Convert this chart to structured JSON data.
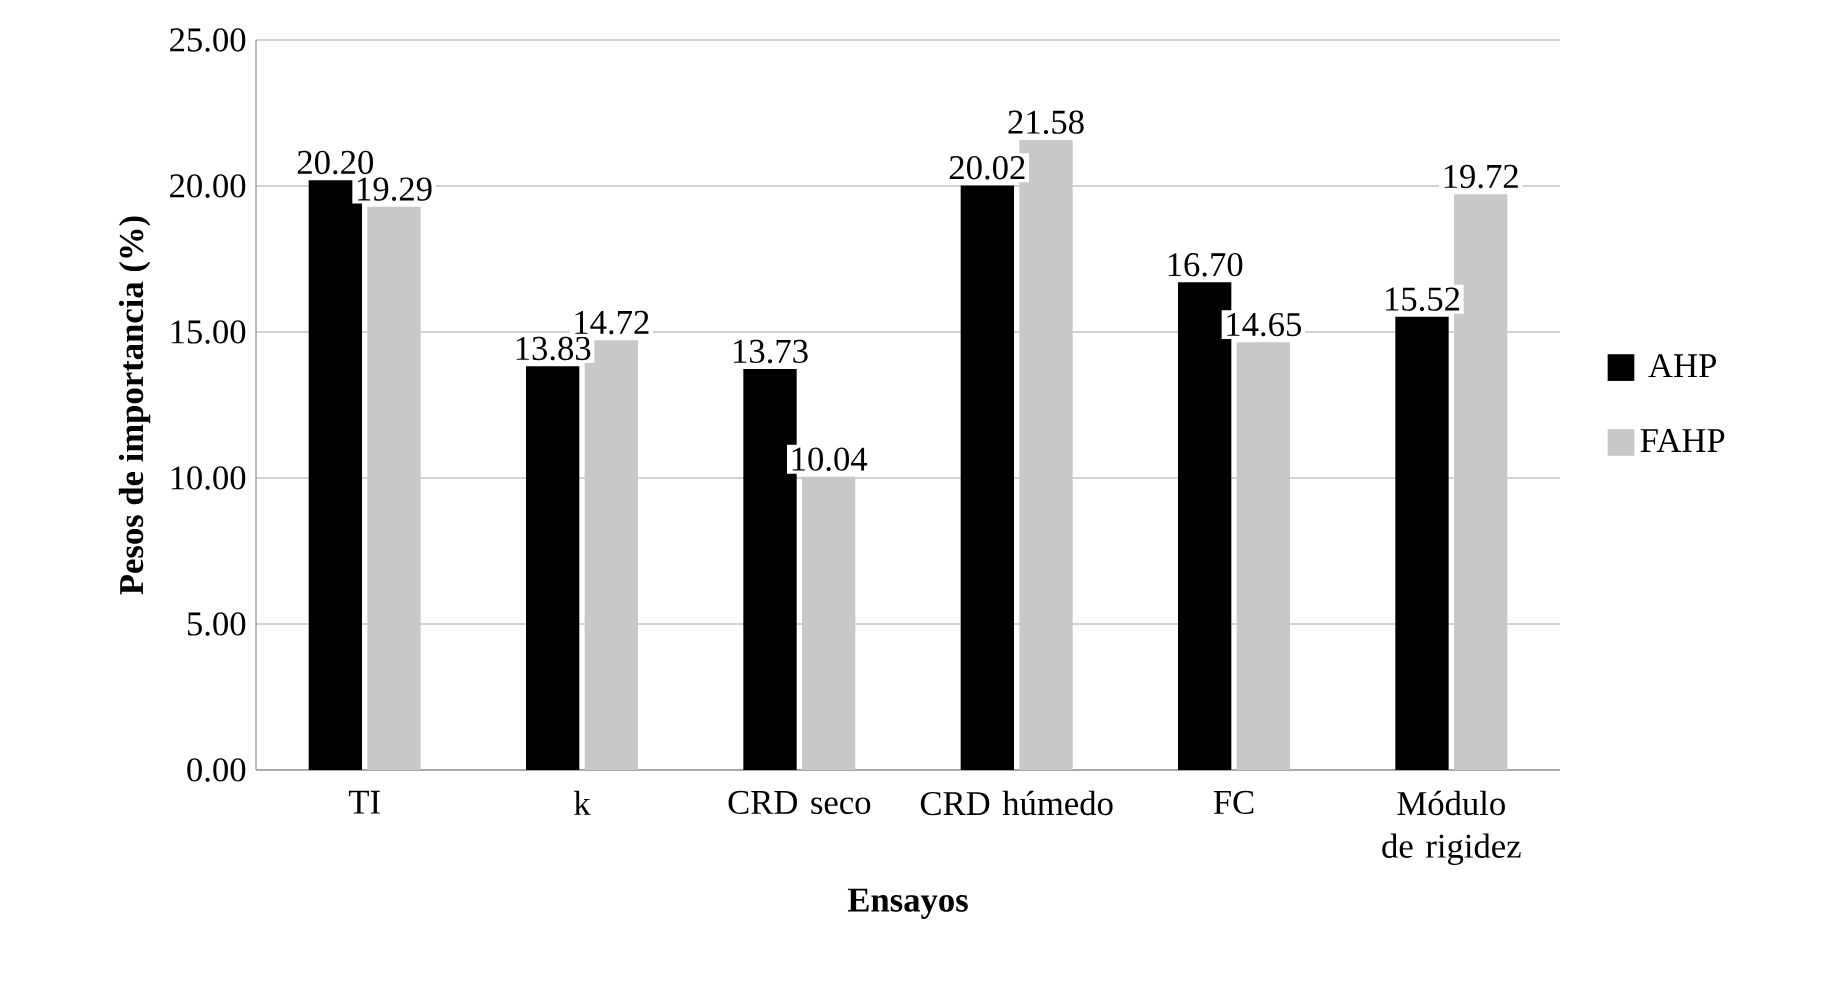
{
  "chart_data": {
    "type": "bar",
    "xlabel": "Ensayos",
    "ylabel": "Pesos de importancia (%)",
    "categories": [
      "TI",
      "k",
      "CRD seco",
      "CRD húmedo",
      "FC",
      "Módulo de rigidez"
    ],
    "series": [
      {
        "name": "AHP",
        "color": "#000000",
        "values": [
          20.2,
          13.83,
          13.73,
          20.02,
          16.7,
          15.52
        ],
        "value_labels": [
          "20.20",
          "13.83",
          "13.73",
          "20.02",
          "16.70",
          "15.52"
        ]
      },
      {
        "name": "FAHP",
        "color": "#c8c8c8",
        "values": [
          19.29,
          14.72,
          10.04,
          21.58,
          14.65,
          19.72
        ],
        "value_labels": [
          "19.29",
          "14.72",
          "10.04",
          "21.58",
          "14.65",
          "19.72"
        ]
      }
    ],
    "ylim": [
      0,
      25
    ],
    "yticks": [
      {
        "value": 0,
        "label": "0.00"
      },
      {
        "value": 5,
        "label": "5.00"
      },
      {
        "value": 10,
        "label": "10.00"
      },
      {
        "value": 15,
        "label": "15.00"
      },
      {
        "value": 20,
        "label": "20.00"
      },
      {
        "value": 25,
        "label": "25.00"
      }
    ],
    "grid": "y",
    "legend": "right"
  }
}
